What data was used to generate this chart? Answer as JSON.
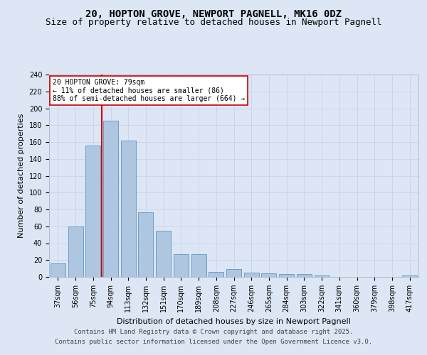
{
  "title_line1": "20, HOPTON GROVE, NEWPORT PAGNELL, MK16 0DZ",
  "title_line2": "Size of property relative to detached houses in Newport Pagnell",
  "xlabel": "Distribution of detached houses by size in Newport Pagnell",
  "ylabel": "Number of detached properties",
  "footer_line1": "Contains HM Land Registry data © Crown copyright and database right 2025.",
  "footer_line2": "Contains public sector information licensed under the Open Government Licence v3.0.",
  "categories": [
    "37sqm",
    "56sqm",
    "75sqm",
    "94sqm",
    "113sqm",
    "132sqm",
    "151sqm",
    "170sqm",
    "189sqm",
    "208sqm",
    "227sqm",
    "246sqm",
    "265sqm",
    "284sqm",
    "303sqm",
    "322sqm",
    "341sqm",
    "360sqm",
    "379sqm",
    "398sqm",
    "417sqm"
  ],
  "values": [
    16,
    60,
    156,
    185,
    162,
    77,
    55,
    27,
    27,
    6,
    9,
    5,
    4,
    3,
    3,
    2,
    0,
    0,
    0,
    0,
    2
  ],
  "bar_color": "#aec6df",
  "bar_edge_color": "#6b9ec8",
  "vline_color": "#cc0000",
  "annotation_text": "20 HOPTON GROVE: 79sqm\n← 11% of detached houses are smaller (86)\n88% of semi-detached houses are larger (664) →",
  "annotation_box_color": "#ffffff",
  "annotation_box_edge": "#cc0000",
  "background_color": "#dce6f5",
  "plot_bg_color": "#dce6f5",
  "ylim": [
    0,
    240
  ],
  "yticks": [
    0,
    20,
    40,
    60,
    80,
    100,
    120,
    140,
    160,
    180,
    200,
    220,
    240
  ],
  "title_fontsize": 10,
  "subtitle_fontsize": 9,
  "axis_label_fontsize": 8,
  "tick_fontsize": 7,
  "footer_fontsize": 6.5
}
